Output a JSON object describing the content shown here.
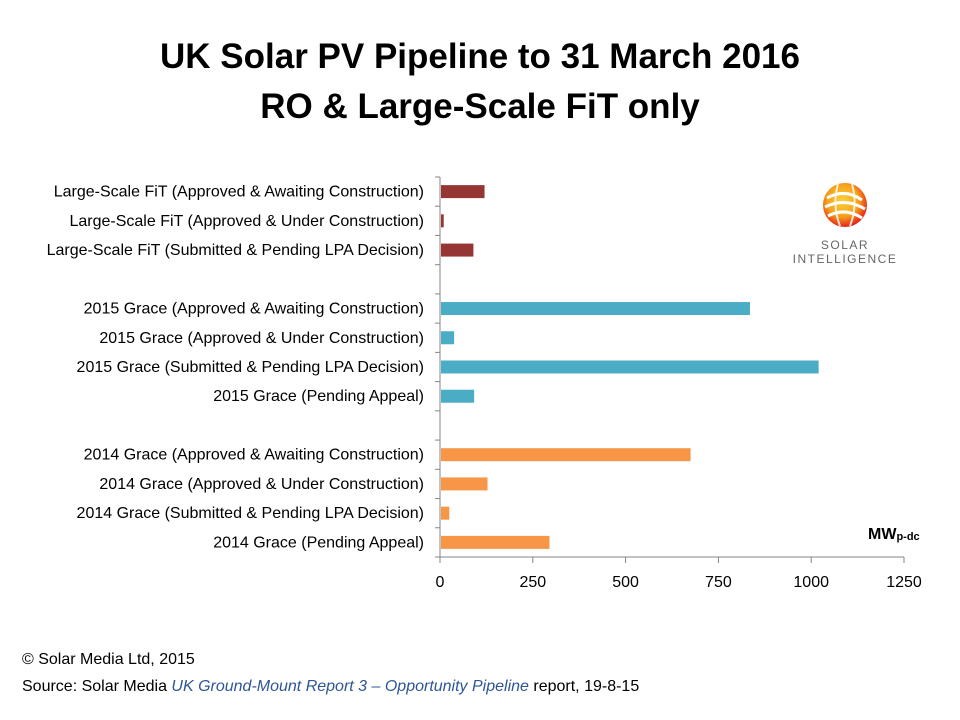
{
  "header": {
    "title_line1": "UK Solar PV Pipeline to 31 March 2016",
    "title_line2": "RO & Large-Scale FiT only"
  },
  "logo": {
    "line1": "SOLAR",
    "line2": "INTELLIGENCE",
    "colors": [
      "#e2231a",
      "#f7a21b",
      "#fbd13a"
    ]
  },
  "unit": {
    "main": "MW",
    "sub": "p-dc"
  },
  "footer": {
    "copyright": "© Solar Media Ltd, 2015",
    "source_prefix": "Source: Solar Media ",
    "source_italic": "UK Ground-Mount Report 3 – Opportunity Pipeline",
    "source_suffix": " report,  19-8-15"
  },
  "chart_data": {
    "type": "bar",
    "orientation": "horizontal",
    "categories": [
      "Large-Scale FiT (Approved & Awaiting Construction)",
      "Large-Scale FiT (Approved & Under Construction)",
      "Large-Scale FiT (Submitted & Pending LPA Decision)",
      "",
      "2015 Grace (Approved & Awaiting Construction)",
      "2015 Grace (Approved & Under Construction)",
      "2015 Grace (Submitted & Pending LPA Decision)",
      "2015 Grace (Pending Appeal)",
      "",
      "2014 Grace (Approved & Awaiting Construction)",
      "2014 Grace (Approved & Under Construction)",
      "2014 Grace (Submitted & Pending LPA Decision)",
      "2014 Grace (Pending Appeal)"
    ],
    "values": [
      120,
      10,
      90,
      null,
      835,
      38,
      1020,
      92,
      null,
      675,
      128,
      25,
      295
    ],
    "colors": [
      "#963634",
      "#963634",
      "#963634",
      null,
      "#4bacc6",
      "#4bacc6",
      "#4bacc6",
      "#4bacc6",
      null,
      "#f79646",
      "#f79646",
      "#f79646",
      "#f79646"
    ],
    "xlim": [
      0,
      1250
    ],
    "xticks": [
      0,
      250,
      500,
      750,
      1000,
      1250
    ],
    "grid": false,
    "legend": false
  }
}
